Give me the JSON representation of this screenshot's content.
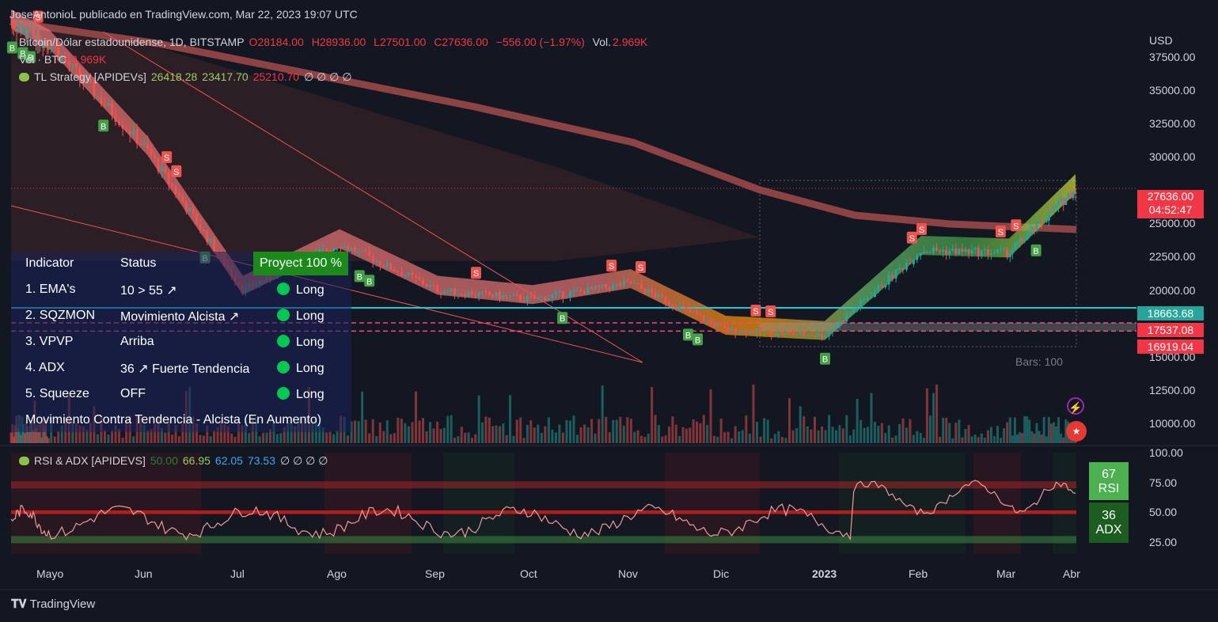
{
  "header": {
    "text": "JoseAntonioL publicado en TradingView.com, Mar 22, 2023 19:07 UTC"
  },
  "symbol": {
    "name": "Bitcoin/Dólar estadounidense, 1D, BITSTAMP",
    "o_label": "O",
    "o": "28184.00",
    "h_label": "H",
    "h": "28936.00",
    "l_label": "L",
    "l": "27501.00",
    "c_label": "C",
    "c": "27636.00",
    "change": "−556.00 (−1.97%)",
    "vol_label": "Vol.",
    "vol": "2.969K"
  },
  "volume_legend": {
    "label": "Vol · BTC",
    "value": "2.969K"
  },
  "strategy_legend": {
    "label": "TL Strategy [APIDEVs]",
    "v1": "26418.28",
    "v2": "23417.70",
    "v3": "25210.70",
    "empties": "∅ ∅ ∅ ∅"
  },
  "currency": "USD",
  "price_axis": [
    "37500.00",
    "35000.00",
    "32500.00",
    "30000.00",
    "25000.00",
    "22500.00",
    "20000.00",
    "15000.00",
    "12500.00",
    "10000.00"
  ],
  "price_tags": {
    "last": "27636.00",
    "countdown": "04:52:47",
    "line1": "18663.68",
    "line2": "17537.08",
    "line3": "16919.04"
  },
  "time_axis": [
    "Mayo",
    "Jun",
    "Jul",
    "Ago",
    "Sep",
    "Oct",
    "Nov",
    "Dic",
    "2023",
    "Feb",
    "Mar",
    "Abr"
  ],
  "bars_text": "Bars: 100",
  "proyect": "Proyect 100 %",
  "table": {
    "head": [
      "Indicator",
      "Status"
    ],
    "rows": [
      {
        "name": "1. EMA's",
        "status": "10 > 55 ↗",
        "signal": "Long"
      },
      {
        "name": "2. SQZMON",
        "status": "Movimiento Alcista ↗",
        "signal": "Long"
      },
      {
        "name": "3. VPVP",
        "status": "Arriba",
        "signal": "Long"
      },
      {
        "name": "4. ADX",
        "status": "36 ↗ Fuerte Tendencia",
        "signal": "Long"
      },
      {
        "name": "5. Squeeze",
        "status": "OFF",
        "signal": "Long"
      }
    ],
    "footer": "Movimiento Contra Tendencia - Alcista (En Aumento)"
  },
  "rsi_legend": {
    "label": "RSI & ADX [APIDEVS]",
    "v1": "50.00",
    "v2": "66.95",
    "v3": "62.05",
    "v4": "73.53",
    "empties": "∅ ∅ ∅ ∅"
  },
  "rsi_axis": [
    "100.00",
    "75.00",
    "50.00",
    "25.00"
  ],
  "rsi_tag": {
    "value": "67",
    "label": "RSI"
  },
  "adx_tag": {
    "value": "36",
    "label": "ADX"
  },
  "footer": "TradingView",
  "colors": {
    "bg": "#131722",
    "up": "#26a69a",
    "down": "#ef5350",
    "cyan": "#26c6da",
    "magenta": "#ff4081",
    "rsi_tag": "#4caf50",
    "adx_tag": "#1b5e20"
  },
  "chart_data": {
    "type": "line",
    "title": "Bitcoin/Dólar estadounidense, 1D, BITSTAMP",
    "x": [
      "Abr",
      "Mayo",
      "Jun",
      "Jul",
      "Ago",
      "Sep",
      "Oct",
      "Nov",
      "Dic",
      "2023",
      "Feb",
      "Mar",
      "Abr"
    ],
    "series": [
      {
        "name": "Bitcoin/Dólar estadounidense",
        "values": [
          40000,
          38500,
          30500,
          20000,
          23500,
          20000,
          19300,
          20500,
          17000,
          16600,
          23000,
          22800,
          27636
        ]
      }
    ],
    "levels": [
      18663.68,
      17537.08,
      16919.04
    ],
    "ylim": [
      8500,
      40000
    ],
    "rsi_ylim": [
      15,
      100
    ]
  }
}
